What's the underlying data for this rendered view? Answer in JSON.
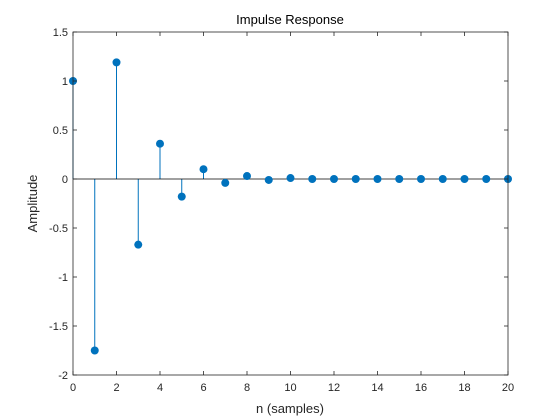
{
  "chart_data": {
    "type": "stem",
    "title": "Impulse Response",
    "xlabel": "n (samples)",
    "ylabel": "Amplitude",
    "xlim": [
      0,
      20
    ],
    "ylim": [
      -2,
      1.5
    ],
    "xticks": [
      0,
      2,
      4,
      6,
      8,
      10,
      12,
      14,
      16,
      18,
      20
    ],
    "xtick_labels": [
      "0",
      "2",
      "4",
      "6",
      "8",
      "10",
      "12",
      "14",
      "16",
      "18",
      "20"
    ],
    "yticks": [
      -2,
      -1.5,
      -1,
      -0.5,
      0,
      0.5,
      1,
      1.5
    ],
    "ytick_labels": [
      "-2",
      "-1.5",
      "-1",
      "-0.5",
      "0",
      "0.5",
      "1",
      "1.5"
    ],
    "grid": false,
    "series": [
      {
        "x": [
          0,
          1,
          2,
          3,
          4,
          5,
          6,
          7,
          8,
          9,
          10,
          11,
          12,
          13,
          14,
          15,
          16,
          17,
          18,
          19,
          20
        ],
        "y": [
          1.0,
          -1.75,
          1.19,
          -0.67,
          0.36,
          -0.18,
          0.1,
          -0.04,
          0.03,
          -0.01,
          0.01,
          0.0,
          0.0,
          0.0,
          0.0,
          0.0,
          0.0,
          0.0,
          0.0,
          0.0,
          0.0
        ],
        "color": "#0072BD"
      }
    ]
  }
}
